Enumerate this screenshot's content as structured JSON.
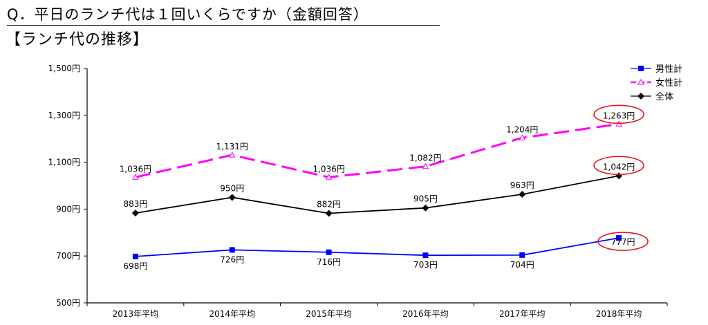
{
  "header": {
    "question": "Q．平日のランチ代は１回いくらですか（金額回答）",
    "subtitle": "【ランチ代の推移】"
  },
  "chart_data": {
    "type": "line",
    "categories": [
      "2013年平均",
      "2014年平均",
      "2015年平均",
      "2016年平均",
      "2017年平均",
      "2018年平均"
    ],
    "ylim": [
      500,
      1500
    ],
    "yticks": [
      500,
      700,
      900,
      1100,
      1300,
      1500
    ],
    "ytick_labels": [
      "500円",
      "700円",
      "900円",
      "1,100円",
      "1,300円",
      "1,500円"
    ],
    "legend_position": "top-right",
    "grid": false,
    "series": [
      {
        "name": "男性計",
        "color": "#0000ff",
        "marker": "square",
        "dash": "solid",
        "values": [
          698,
          726,
          716,
          703,
          704,
          777
        ],
        "labels": [
          "698円",
          "726円",
          "716円",
          "703円",
          "704円",
          "777円"
        ]
      },
      {
        "name": "女性計",
        "color": "#ff00ff",
        "marker": "triangle-open",
        "dash": "dashed",
        "values": [
          1036,
          1131,
          1036,
          1082,
          1204,
          1263
        ],
        "labels": [
          "1,036円",
          "1,131円",
          "1,036円",
          "1,082円",
          "1,204円",
          "1,263円"
        ]
      },
      {
        "name": "全体",
        "color": "#000000",
        "marker": "diamond",
        "dash": "solid",
        "values": [
          883,
          950,
          882,
          905,
          963,
          1042
        ],
        "labels": [
          "883円",
          "950円",
          "882円",
          "905円",
          "963円",
          "1,042円"
        ]
      }
    ],
    "highlight_color": "#e8141c"
  }
}
